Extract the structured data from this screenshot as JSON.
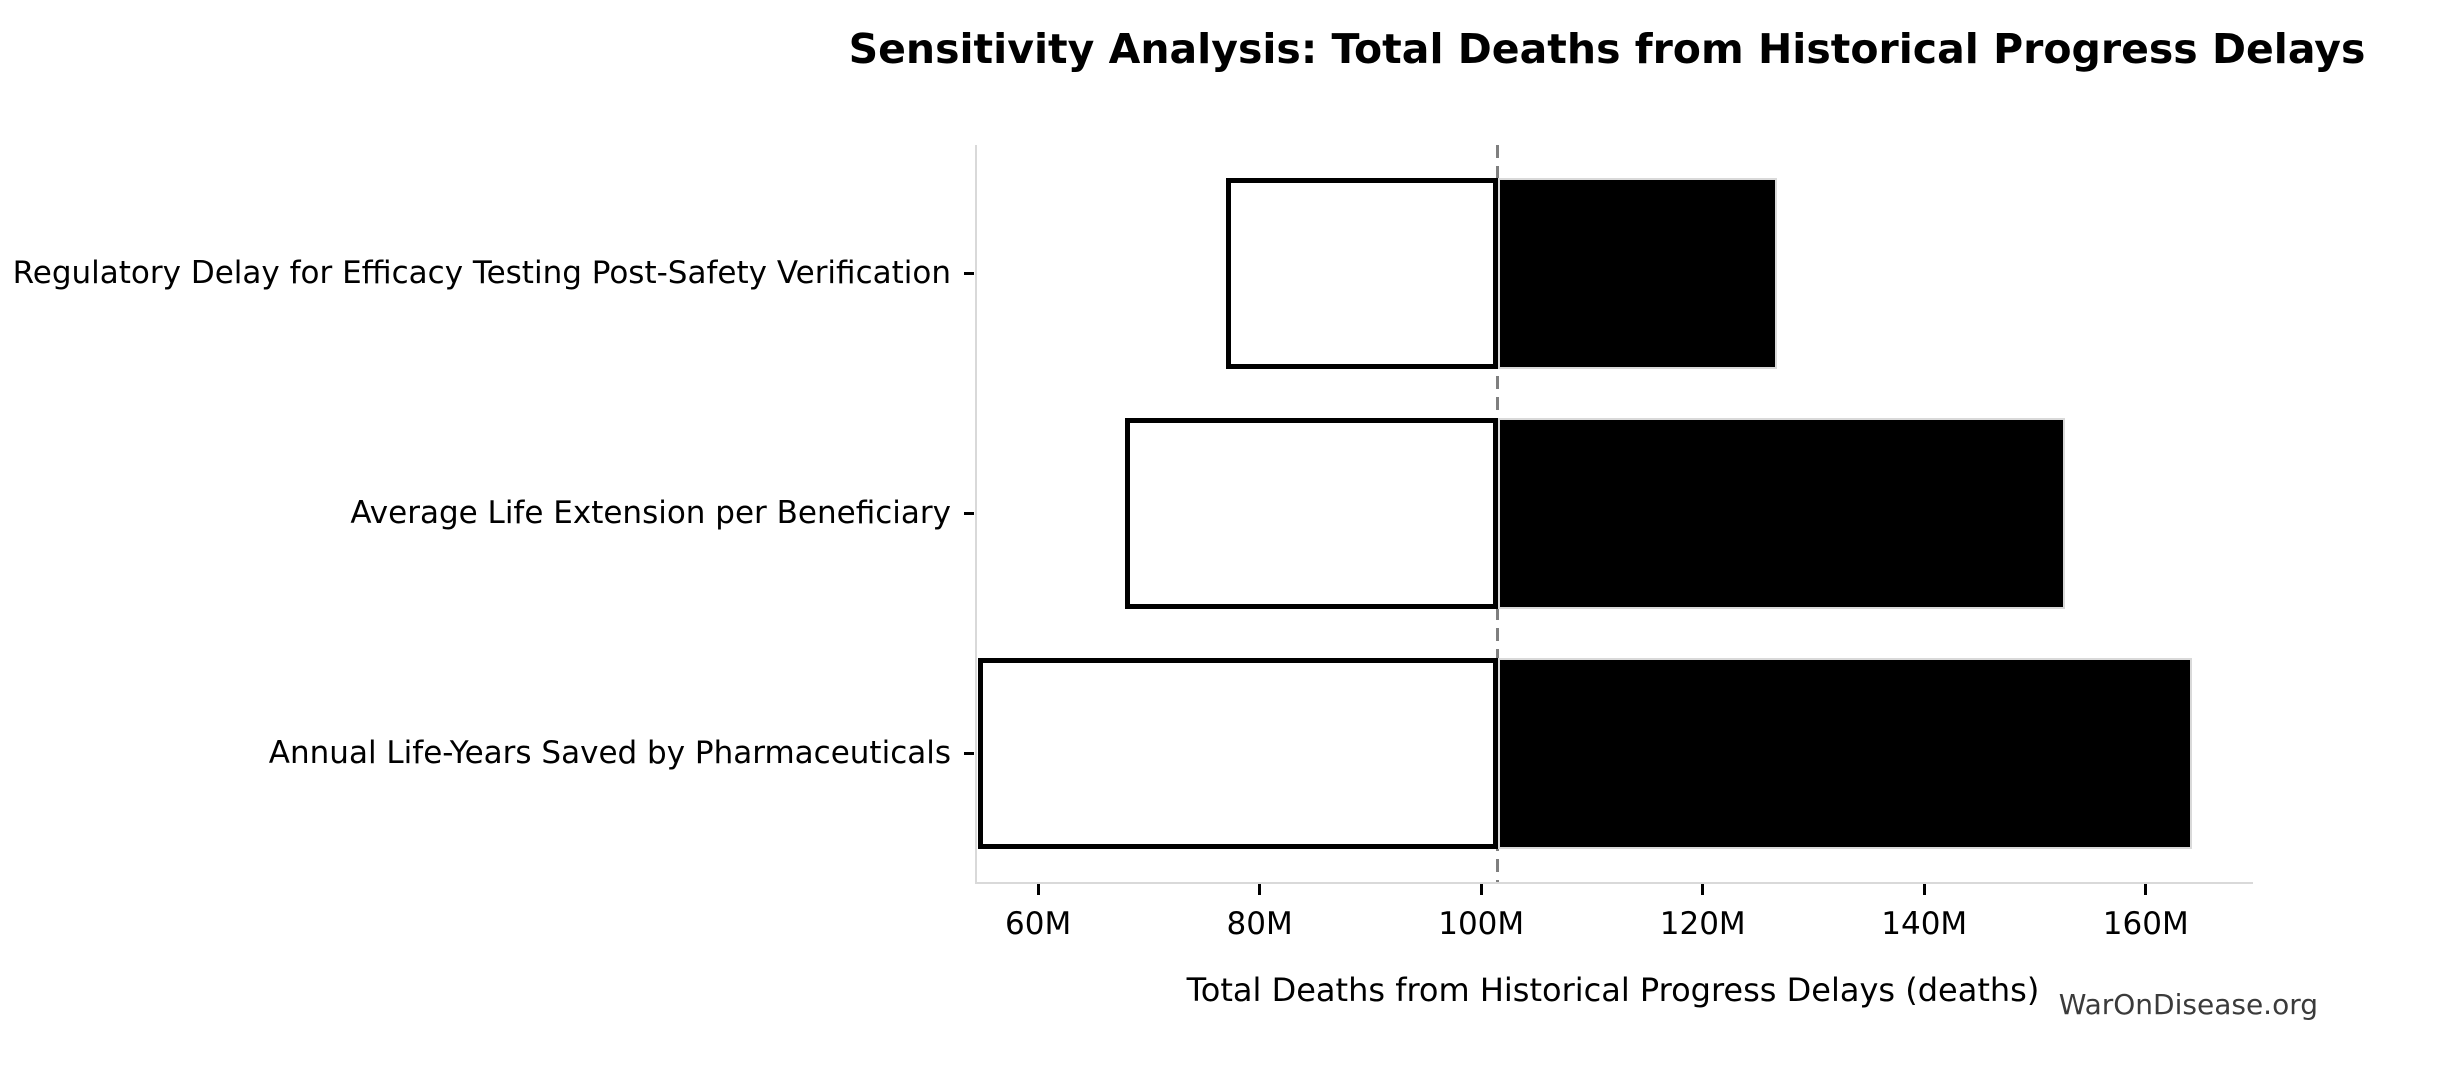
{
  "watermark": "WarOnDisease.org",
  "chart_data": {
    "type": "bar",
    "orientation": "horizontal",
    "variant": "tornado-sensitivity",
    "title": "Sensitivity Analysis: Total Deaths from Historical Progress Delays",
    "xlabel": "Total Deaths from Historical Progress Delays (deaths)",
    "unit": "millions of deaths",
    "categories": [
      "Regulatory Delay for Efficacy Testing Post-Safety Verification",
      "Average Life Extension per Beneficiary",
      "Annual Life-Years Saved by Pharmaceuticals"
    ],
    "baseline_value": 101.5,
    "series": [
      {
        "name": "low_estimate",
        "values": [
          77.0,
          67.8,
          54.6
        ]
      },
      {
        "name": "high_estimate",
        "values": [
          126.7,
          152.7,
          164.2
        ]
      }
    ],
    "xlim": [
      54.3,
      169.5
    ],
    "xticks": [
      60,
      80,
      100,
      120,
      140,
      160
    ],
    "xtick_labels": [
      "60M",
      "80M",
      "100M",
      "120M",
      "140M",
      "160M"
    ],
    "baseline_line": {
      "style": "dashed",
      "color": "#7f7f7f"
    },
    "grid": false,
    "legend": null,
    "colors": {
      "bar_low_fill": "#ffffff",
      "bar_low_edge": "#000000",
      "bar_high_fill": "#000000",
      "bar_high_edge": "#d9d9d9",
      "spine": "#d9d9d9",
      "tick": "#000000",
      "text": "#000000",
      "watermark": "#3b3b3b"
    }
  }
}
